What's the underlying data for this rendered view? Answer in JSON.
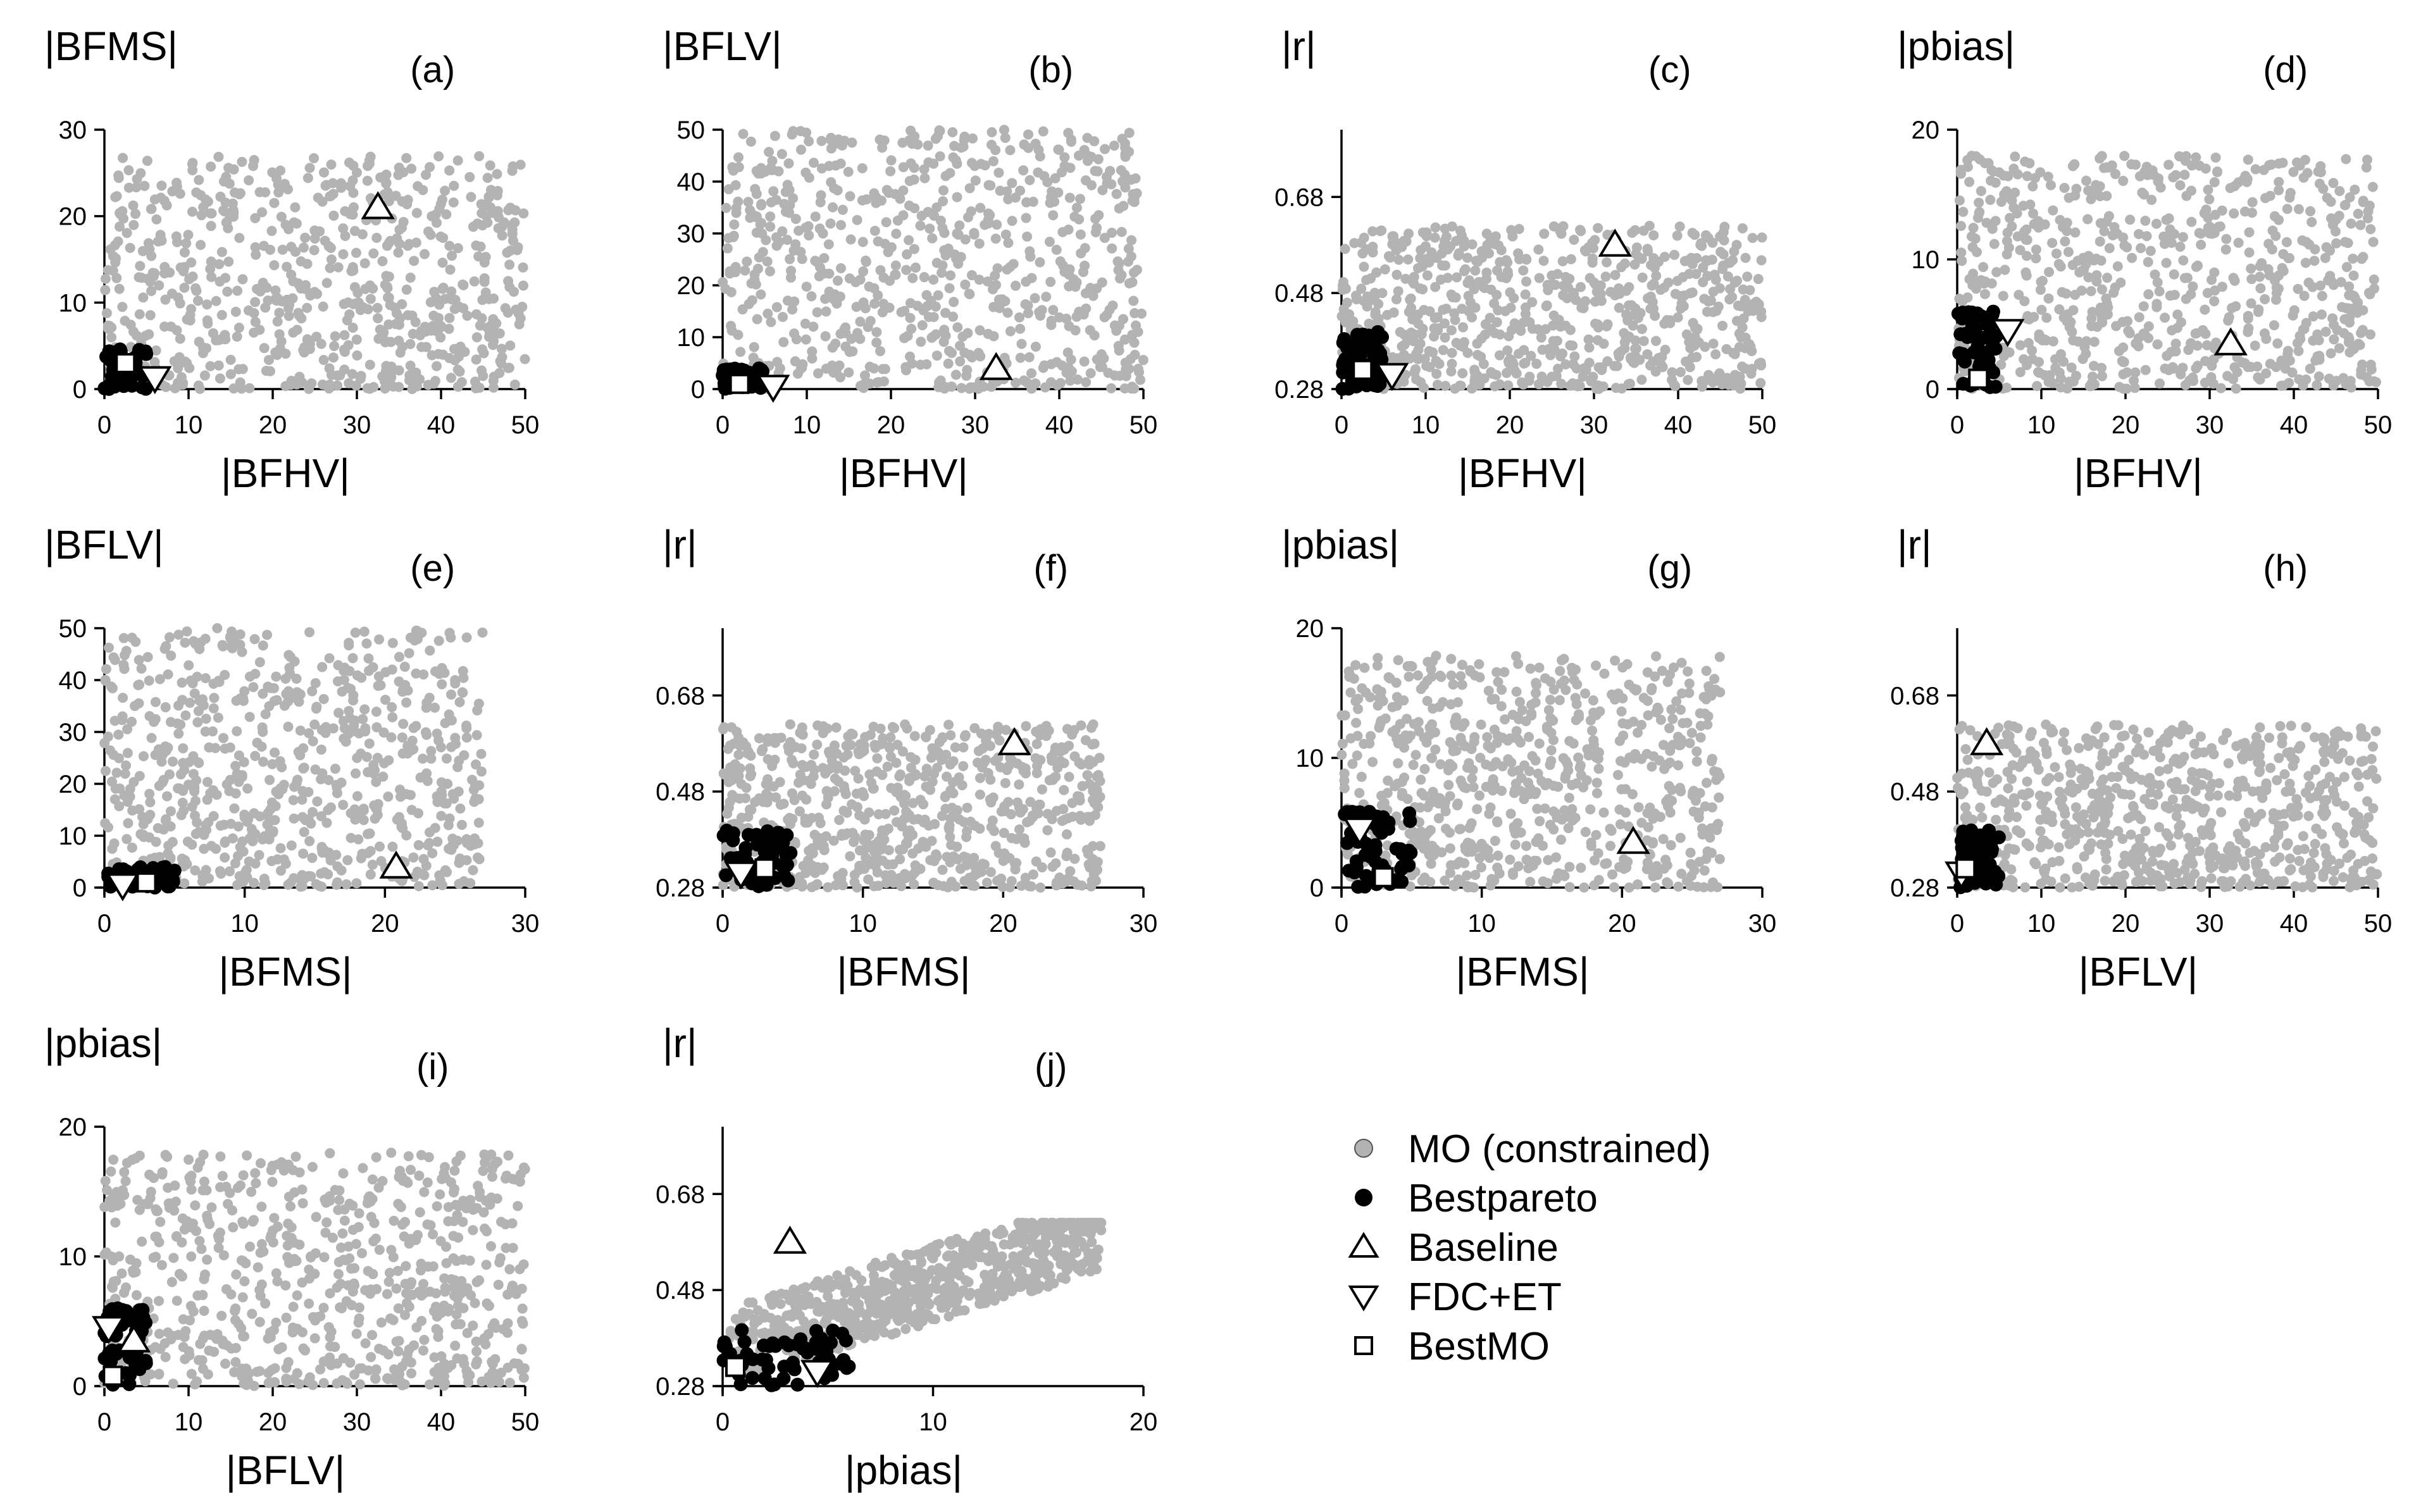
{
  "colors": {
    "mo_constrained": "#b3b3b3",
    "bestpareto": "#000000",
    "hollow_marker_fill": "#ffffff",
    "hollow_marker_stroke": "#000000"
  },
  "legend": {
    "placement": "bottom-right",
    "entries": [
      {
        "key": "mo",
        "label": "MO (constrained)",
        "marker": "filled-circle-gray"
      },
      {
        "key": "bp",
        "label": "Bestpareto",
        "marker": "filled-circle-black"
      },
      {
        "key": "baseline",
        "label": "Baseline",
        "marker": "triangle-up-hollow"
      },
      {
        "key": "fdcet",
        "label": "FDC+ET",
        "marker": "triangle-down-hollow"
      },
      {
        "key": "bestmo",
        "label": "BestMO",
        "marker": "square-hollow"
      }
    ]
  },
  "chart_data": [
    {
      "panel": "(a)",
      "type": "scatter",
      "xlabel": "|BFHV|",
      "ylabel": "|BFMS|",
      "xlim": [
        0,
        50
      ],
      "ylim": [
        0,
        30
      ],
      "xticks": [
        0,
        10,
        20,
        30,
        40,
        50
      ],
      "yticks": [
        0,
        10,
        20,
        30
      ],
      "xtick_labels": [
        "0",
        "10",
        "20",
        "30",
        "40",
        "50"
      ],
      "ytick_labels": [
        "0",
        "10",
        "20",
        "30"
      ],
      "mo_range": {
        "x": [
          0,
          50
        ],
        "y": [
          0,
          27
        ]
      },
      "mo_trend": "cloud",
      "bestpareto_range": {
        "x": [
          0,
          5
        ],
        "y": [
          0,
          5
        ]
      },
      "baseline": [
        32.5,
        21
      ],
      "fdc_et": [
        6,
        1.3
      ],
      "bestmo": [
        2.5,
        3
      ]
    },
    {
      "panel": "(b)",
      "type": "scatter",
      "xlabel": "|BFHV|",
      "ylabel": "|BFLV|",
      "xlim": [
        0,
        50
      ],
      "ylim": [
        0,
        50
      ],
      "xticks": [
        0,
        10,
        20,
        30,
        40,
        50
      ],
      "yticks": [
        0,
        10,
        20,
        30,
        40,
        50
      ],
      "xtick_labels": [
        "0",
        "10",
        "20",
        "30",
        "40",
        "50"
      ],
      "ytick_labels": [
        "0",
        "10",
        "20",
        "30",
        "40",
        "50"
      ],
      "mo_range": {
        "x": [
          0,
          50
        ],
        "y": [
          0,
          50
        ]
      },
      "mo_trend": "cloud",
      "bestpareto_range": {
        "x": [
          0,
          5
        ],
        "y": [
          0,
          4
        ]
      },
      "baseline": [
        32.5,
        4
      ],
      "fdc_et": [
        6,
        0.5
      ],
      "bestmo": [
        2,
        1
      ]
    },
    {
      "panel": "(c)",
      "type": "scatter",
      "xlabel": "|BFHV|",
      "ylabel": "|r|",
      "xlim": [
        0,
        50
      ],
      "ylim": [
        0.28,
        0.82
      ],
      "xticks": [
        0,
        10,
        20,
        30,
        40,
        50
      ],
      "yticks": [
        0.28,
        0.48,
        0.68
      ],
      "xtick_labels": [
        "0",
        "10",
        "20",
        "30",
        "40",
        "50"
      ],
      "ytick_labels": [
        "0.28",
        "0.48",
        "0.68"
      ],
      "mo_range": {
        "x": [
          0,
          50
        ],
        "y": [
          0.28,
          0.62
        ]
      },
      "mo_trend": "cloud",
      "bestpareto_range": {
        "x": [
          0,
          5
        ],
        "y": [
          0.28,
          0.4
        ]
      },
      "baseline": [
        32.5,
        0.58
      ],
      "fdc_et": [
        6,
        0.31
      ],
      "bestmo": [
        2.5,
        0.32
      ]
    },
    {
      "panel": "(d)",
      "type": "scatter",
      "xlabel": "|BFHV|",
      "ylabel": "|pbias|",
      "xlim": [
        0,
        50
      ],
      "ylim": [
        0,
        20
      ],
      "xticks": [
        0,
        10,
        20,
        30,
        40,
        50
      ],
      "yticks": [
        0,
        10,
        20
      ],
      "xtick_labels": [
        "0",
        "10",
        "20",
        "30",
        "40",
        "50"
      ],
      "ytick_labels": [
        "0",
        "10",
        "20"
      ],
      "mo_range": {
        "x": [
          0,
          50
        ],
        "y": [
          0,
          18
        ]
      },
      "mo_trend": "cloud",
      "bestpareto_range": {
        "x": [
          0,
          5
        ],
        "y": [
          0,
          6
        ]
      },
      "baseline": [
        32.5,
        3.5
      ],
      "fdc_et": [
        6,
        4.5
      ],
      "bestmo": [
        2.5,
        0.8
      ]
    },
    {
      "panel": "(e)",
      "type": "scatter",
      "xlabel": "|BFMS|",
      "ylabel": "|BFLV|",
      "xlim": [
        0,
        30
      ],
      "ylim": [
        0,
        50
      ],
      "xticks": [
        0,
        10,
        20,
        30
      ],
      "yticks": [
        0,
        10,
        20,
        30,
        40,
        50
      ],
      "xtick_labels": [
        "0",
        "10",
        "20",
        "30"
      ],
      "ytick_labels": [
        "0",
        "10",
        "20",
        "30",
        "40",
        "50"
      ],
      "mo_range": {
        "x": [
          0,
          27
        ],
        "y": [
          0,
          50
        ]
      },
      "mo_trend": "cloud",
      "bestpareto_range": {
        "x": [
          0,
          5
        ],
        "y": [
          0,
          4
        ]
      },
      "baseline": [
        20.8,
        4
      ],
      "fdc_et": [
        1.3,
        0.5
      ],
      "bestmo": [
        3,
        1
      ]
    },
    {
      "panel": "(f)",
      "type": "scatter",
      "xlabel": "|BFMS|",
      "ylabel": "|r|",
      "xlim": [
        0,
        30
      ],
      "ylim": [
        0.28,
        0.82
      ],
      "xticks": [
        0,
        10,
        20,
        30
      ],
      "yticks": [
        0.28,
        0.48,
        0.68
      ],
      "xtick_labels": [
        "0",
        "10",
        "20",
        "30"
      ],
      "ytick_labels": [
        "0.28",
        "0.48",
        "0.68"
      ],
      "mo_range": {
        "x": [
          0,
          27
        ],
        "y": [
          0.28,
          0.62
        ]
      },
      "mo_trend": "cloud",
      "bestpareto_range": {
        "x": [
          0,
          5
        ],
        "y": [
          0.28,
          0.4
        ]
      },
      "baseline": [
        20.8,
        0.58
      ],
      "fdc_et": [
        1.3,
        0.31
      ],
      "bestmo": [
        3,
        0.32
      ]
    },
    {
      "panel": "(g)",
      "type": "scatter",
      "xlabel": "|BFMS|",
      "ylabel": "|pbias|",
      "xlim": [
        0,
        30
      ],
      "ylim": [
        0,
        20
      ],
      "xticks": [
        0,
        10,
        20,
        30
      ],
      "yticks": [
        0,
        10,
        20
      ],
      "xtick_labels": [
        "0",
        "10",
        "20",
        "30"
      ],
      "ytick_labels": [
        "0",
        "10",
        "20"
      ],
      "mo_range": {
        "x": [
          0,
          27
        ],
        "y": [
          0,
          18
        ]
      },
      "mo_trend": "cloud",
      "bestpareto_range": {
        "x": [
          0,
          5
        ],
        "y": [
          0,
          6
        ]
      },
      "baseline": [
        20.8,
        3.5
      ],
      "fdc_et": [
        1.3,
        4.5
      ],
      "bestmo": [
        3,
        0.8
      ]
    },
    {
      "panel": "(h)",
      "type": "scatter",
      "xlabel": "|BFLV|",
      "ylabel": "|r|",
      "xlim": [
        0,
        50
      ],
      "ylim": [
        0.28,
        0.82
      ],
      "xticks": [
        0,
        10,
        20,
        30,
        40,
        50
      ],
      "yticks": [
        0.28,
        0.48,
        0.68
      ],
      "xtick_labels": [
        "0",
        "10",
        "20",
        "30",
        "40",
        "50"
      ],
      "ytick_labels": [
        "0.28",
        "0.48",
        "0.68"
      ],
      "mo_range": {
        "x": [
          0,
          50
        ],
        "y": [
          0.28,
          0.62
        ]
      },
      "mo_trend": "cloud",
      "bestpareto_range": {
        "x": [
          0,
          5
        ],
        "y": [
          0.28,
          0.4
        ]
      },
      "baseline": [
        3.5,
        0.58
      ],
      "fdc_et": [
        0.5,
        0.31
      ],
      "bestmo": [
        1,
        0.32
      ]
    },
    {
      "panel": "(i)",
      "type": "scatter",
      "xlabel": "|BFLV|",
      "ylabel": "|pbias|",
      "xlim": [
        0,
        50
      ],
      "ylim": [
        0,
        20
      ],
      "xticks": [
        0,
        10,
        20,
        30,
        40,
        50
      ],
      "yticks": [
        0,
        10,
        20
      ],
      "xtick_labels": [
        "0",
        "10",
        "20",
        "30",
        "40",
        "50"
      ],
      "ytick_labels": [
        "0",
        "10",
        "20"
      ],
      "mo_range": {
        "x": [
          0,
          50
        ],
        "y": [
          0,
          18
        ]
      },
      "mo_trend": "cloud",
      "bestpareto_range": {
        "x": [
          0,
          5
        ],
        "y": [
          0,
          6
        ]
      },
      "baseline": [
        3.5,
        3.5
      ],
      "fdc_et": [
        0.5,
        4.5
      ],
      "bestmo": [
        1,
        0.8
      ]
    },
    {
      "panel": "(j)",
      "type": "scatter",
      "xlabel": "|pbias|",
      "ylabel": "|r|",
      "xlim": [
        0,
        20
      ],
      "ylim": [
        0.28,
        0.82
      ],
      "xticks": [
        0,
        10,
        20
      ],
      "yticks": [
        0.28,
        0.48,
        0.68
      ],
      "xtick_labels": [
        "0",
        "10",
        "20"
      ],
      "ytick_labels": [
        "0.28",
        "0.48",
        "0.68"
      ],
      "mo_range": {
        "x": [
          0,
          18
        ],
        "y": [
          0.28,
          0.62
        ]
      },
      "mo_trend": "increasing",
      "bestpareto_range": {
        "x": [
          0,
          6
        ],
        "y": [
          0.28,
          0.4
        ]
      },
      "baseline": [
        3.2,
        0.58
      ],
      "fdc_et": [
        4.5,
        0.31
      ],
      "bestmo": [
        0.6,
        0.32
      ]
    }
  ]
}
